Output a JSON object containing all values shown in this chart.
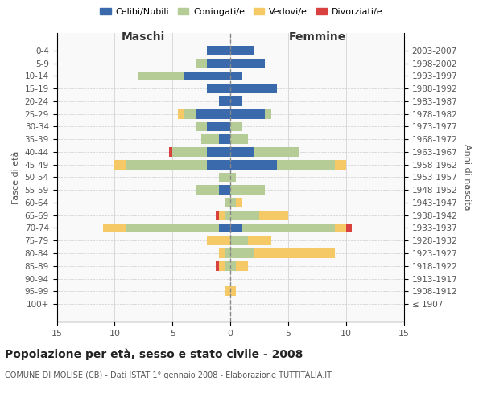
{
  "age_groups": [
    "100+",
    "95-99",
    "90-94",
    "85-89",
    "80-84",
    "75-79",
    "70-74",
    "65-69",
    "60-64",
    "55-59",
    "50-54",
    "45-49",
    "40-44",
    "35-39",
    "30-34",
    "25-29",
    "20-24",
    "15-19",
    "10-14",
    "5-9",
    "0-4"
  ],
  "birth_years": [
    "≤ 1907",
    "1908-1912",
    "1913-1917",
    "1918-1922",
    "1923-1927",
    "1928-1932",
    "1933-1937",
    "1938-1942",
    "1943-1947",
    "1948-1952",
    "1953-1957",
    "1958-1962",
    "1963-1967",
    "1968-1972",
    "1973-1977",
    "1978-1982",
    "1983-1987",
    "1988-1992",
    "1993-1997",
    "1998-2002",
    "2003-2007"
  ],
  "maschi": {
    "celibi": [
      0,
      0,
      0,
      0,
      0,
      0,
      1,
      0,
      0,
      1,
      0,
      2,
      2,
      1,
      2,
      3,
      1,
      2,
      4,
      2,
      2
    ],
    "coniugati": [
      0,
      0,
      0,
      0.5,
      0.5,
      0,
      8,
      0.5,
      0.5,
      2,
      1,
      7,
      3,
      1.5,
      1,
      1,
      0,
      0,
      4,
      1,
      0
    ],
    "vedovi": [
      0,
      0.5,
      0,
      0.5,
      0.5,
      2,
      2,
      0.5,
      0,
      0,
      0,
      1,
      0,
      0,
      0,
      0.5,
      0,
      0,
      0,
      0,
      0
    ],
    "divorziati": [
      0,
      0,
      0,
      0.3,
      0,
      0,
      0,
      0.3,
      0,
      0,
      0,
      0,
      0.3,
      0,
      0,
      0,
      0,
      0,
      0,
      0,
      0
    ]
  },
  "femmine": {
    "nubili": [
      0,
      0,
      0,
      0,
      0,
      0,
      1,
      0,
      0,
      0,
      0,
      4,
      2,
      0,
      0,
      3,
      1,
      4,
      1,
      3,
      2
    ],
    "coniugate": [
      0,
      0,
      0,
      0.5,
      2,
      1.5,
      8,
      2.5,
      0.5,
      3,
      0.5,
      5,
      4,
      1.5,
      1,
      0.5,
      0,
      0,
      0,
      0,
      0
    ],
    "vedove": [
      0,
      0.5,
      0,
      1,
      7,
      2,
      1,
      2.5,
      0.5,
      0,
      0,
      1,
      0,
      0,
      0,
      0,
      0,
      0,
      0,
      0,
      0
    ],
    "divorziate": [
      0,
      0,
      0,
      0,
      0,
      0,
      0.5,
      0,
      0,
      0,
      0,
      0,
      0,
      0,
      0,
      0,
      0,
      0,
      0,
      0,
      0
    ]
  },
  "colors": {
    "celibi": "#3a6aac",
    "coniugati": "#b5cc96",
    "vedovi": "#f5c965",
    "divorziati": "#d94040"
  },
  "xlim": 15,
  "title": "Popolazione per età, sesso e stato civile - 2008",
  "subtitle": "COMUNE DI MOLISE (CB) - Dati ISTAT 1° gennaio 2008 - Elaborazione TUTTITALIA.IT",
  "ylabel_left": "Fasce di età",
  "ylabel_right": "Anni di nascita",
  "legend_labels": [
    "Celibi/Nubili",
    "Coniugati/e",
    "Vedovi/e",
    "Divorziati/e"
  ],
  "background_color": "#f9f9f9",
  "bar_height": 0.75
}
